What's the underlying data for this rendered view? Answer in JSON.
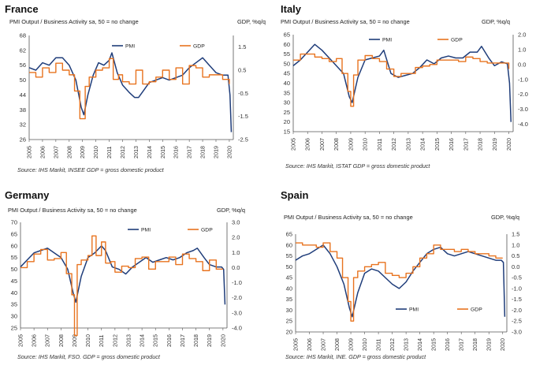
{
  "colors": {
    "pmi": "#1f3d7a",
    "gdp": "#e8731f",
    "axis": "#555555",
    "grid": "#e0e0e0"
  },
  "chart_data": [
    {
      "type": "line",
      "country": "France",
      "subtitle": "PMI Output  / Business Activity sa, 50 = no change",
      "right_axis_label": "GDP, %q/q",
      "source": "Source: IHS Markit, INSEE GDP = gross domestic product",
      "legend": [
        "PMI",
        "GDP"
      ],
      "legend_placement": "top",
      "left_ticks": [
        "68",
        "62",
        "56",
        "50",
        "44",
        "38",
        "32",
        "26"
      ],
      "ylim_left": [
        26,
        68
      ],
      "right_ticks": [
        "1.5",
        "0.5",
        "-0.5",
        "-1.5",
        "-2.5"
      ],
      "ylim_right": [
        -2.5,
        2.0
      ],
      "x_ticks": [
        "2005",
        "2006",
        "2007",
        "2008",
        "2009",
        "2010",
        "2011",
        "2012",
        "2013",
        "2014",
        "2015",
        "2016",
        "2017",
        "2018",
        "2019",
        "2020"
      ],
      "series": [
        {
          "name": "PMI",
          "axis": "left",
          "x": [
            2005.0,
            2005.5,
            2006.0,
            2006.5,
            2007.0,
            2007.5,
            2008.0,
            2008.5,
            2008.9,
            2009.1,
            2009.4,
            2009.8,
            2010.2,
            2010.6,
            2011.0,
            2011.2,
            2011.6,
            2012.0,
            2012.5,
            2012.9,
            2013.2,
            2013.6,
            2014.0,
            2014.5,
            2015.0,
            2015.5,
            2016.0,
            2016.5,
            2017.0,
            2017.5,
            2018.0,
            2018.5,
            2019.0,
            2019.5,
            2019.9,
            2020.05,
            2020.15
          ],
          "values": [
            55,
            54,
            57,
            56,
            59,
            59,
            56,
            50,
            39,
            36,
            44,
            52,
            57,
            56,
            58,
            61,
            53,
            48,
            45,
            43,
            43,
            46,
            49,
            50,
            51,
            50,
            51,
            52,
            55,
            57,
            59,
            56,
            53,
            52,
            52,
            44,
            29
          ]
        },
        {
          "name": "GDP",
          "axis": "right",
          "x": [
            2005.0,
            2005.5,
            2006.0,
            2006.5,
            2007.0,
            2007.5,
            2008.0,
            2008.4,
            2008.8,
            2009.0,
            2009.2,
            2009.5,
            2010.0,
            2010.5,
            2011.0,
            2011.3,
            2011.7,
            2012.0,
            2012.5,
            2013.0,
            2013.5,
            2014.0,
            2014.5,
            2015.0,
            2015.5,
            2016.0,
            2016.5,
            2017.0,
            2017.5,
            2018.0,
            2018.5,
            2019.0,
            2019.5,
            2020.0
          ],
          "values": [
            0.4,
            0.2,
            0.6,
            0.4,
            0.8,
            0.5,
            0.3,
            -0.4,
            -1.6,
            -1.6,
            -0.2,
            0.2,
            0.5,
            0.6,
            1.0,
            0.1,
            0.3,
            0.0,
            -0.1,
            0.5,
            -0.1,
            0.0,
            0.2,
            0.5,
            0.1,
            0.6,
            -0.1,
            0.7,
            0.6,
            0.2,
            0.3,
            0.3,
            0.1,
            -0.1
          ]
        }
      ]
    },
    {
      "type": "line",
      "country": "Italy",
      "subtitle": "PMI Output  / Business Activity sa, 50 = no change",
      "right_axis_label": "GDP, %q/q",
      "source": "Source: IHS Markit, ISTAT GDP = gross domestic product",
      "legend": [
        "PMI",
        "GDP"
      ],
      "legend_placement": "top",
      "left_ticks": [
        "65",
        "60",
        "55",
        "50",
        "45",
        "40",
        "35",
        "30",
        "25",
        "20",
        "15"
      ],
      "ylim_left": [
        15,
        65
      ],
      "right_ticks": [
        "2.0",
        "1.0",
        "0.0",
        "-1.0",
        "-2.0",
        "-3.0",
        "-4.0"
      ],
      "ylim_right": [
        -4.5,
        2.0
      ],
      "x_ticks": [
        "2005",
        "2006",
        "2007",
        "2008",
        "2009",
        "2010",
        "2011",
        "2012",
        "2013",
        "2014",
        "2015",
        "2016",
        "2017",
        "2018",
        "2019",
        "2020"
      ],
      "series": [
        {
          "name": "PMI",
          "axis": "left",
          "x": [
            2005.0,
            2005.5,
            2006.0,
            2006.5,
            2007.0,
            2007.5,
            2008.0,
            2008.5,
            2008.9,
            2009.1,
            2009.5,
            2010.0,
            2010.5,
            2011.0,
            2011.3,
            2011.8,
            2012.3,
            2012.8,
            2013.3,
            2013.8,
            2014.3,
            2014.8,
            2015.3,
            2015.8,
            2016.3,
            2016.8,
            2017.3,
            2017.8,
            2018.1,
            2018.6,
            2019.0,
            2019.5,
            2019.9,
            2020.05,
            2020.15
          ],
          "values": [
            49,
            52,
            56,
            60,
            57,
            53,
            49,
            45,
            33,
            30,
            43,
            52,
            53,
            54,
            57,
            45,
            43,
            44,
            45,
            48,
            52,
            50,
            53,
            54,
            53,
            53,
            56,
            56,
            59,
            53,
            49,
            51,
            50,
            40,
            20
          ]
        },
        {
          "name": "GDP",
          "axis": "right",
          "x": [
            2005.0,
            2005.5,
            2006.0,
            2006.5,
            2007.0,
            2007.5,
            2008.0,
            2008.4,
            2008.8,
            2009.0,
            2009.2,
            2009.5,
            2010.0,
            2010.5,
            2011.0,
            2011.5,
            2012.0,
            2012.5,
            2013.0,
            2013.5,
            2014.0,
            2014.5,
            2015.0,
            2015.5,
            2016.0,
            2016.5,
            2017.0,
            2017.5,
            2018.0,
            2018.5,
            2019.0,
            2019.5,
            2020.0
          ],
          "values": [
            0.3,
            0.7,
            0.7,
            0.5,
            0.4,
            0.2,
            0.4,
            -0.6,
            -1.8,
            -2.8,
            -0.7,
            0.3,
            0.6,
            0.4,
            0.2,
            -0.3,
            -0.8,
            -0.6,
            -0.6,
            -0.2,
            -0.1,
            0.0,
            0.3,
            0.3,
            0.3,
            0.2,
            0.5,
            0.4,
            0.2,
            0.1,
            0.1,
            0.1,
            -0.3
          ]
        }
      ]
    },
    {
      "type": "line",
      "country": "Germany",
      "subtitle": "PMI Output  / Business Activity sa, 50 = no change",
      "right_axis_label": "GDP, %q/q",
      "source": "Source: IHS Markit, FSO. GDP = gross domestic product",
      "legend": [
        "PMI",
        "GDP"
      ],
      "legend_placement": "top",
      "left_ticks": [
        "70",
        "65",
        "60",
        "55",
        "50",
        "45",
        "40",
        "35",
        "30",
        "25"
      ],
      "ylim_left": [
        25,
        70
      ],
      "right_ticks": [
        "3.0",
        "2.0",
        "1.0",
        "0.0",
        "-1.0",
        "-2.0",
        "-3.0",
        "-4.0"
      ],
      "ylim_right": [
        -4.0,
        3.0
      ],
      "x_ticks": [
        "2005",
        "2006",
        "2007",
        "2008",
        "2009",
        "2010",
        "2011",
        "2012",
        "2013",
        "2014",
        "2015",
        "2016",
        "2017",
        "2018",
        "2019",
        "2020"
      ],
      "series": [
        {
          "name": "PMI",
          "axis": "left",
          "x": [
            2005.0,
            2005.5,
            2006.0,
            2006.5,
            2007.0,
            2007.5,
            2008.0,
            2008.5,
            2008.9,
            2009.1,
            2009.5,
            2010.0,
            2010.5,
            2011.0,
            2011.3,
            2011.8,
            2012.3,
            2012.8,
            2013.3,
            2013.8,
            2014.3,
            2014.8,
            2015.3,
            2015.8,
            2016.3,
            2016.8,
            2017.3,
            2017.8,
            2018.1,
            2018.6,
            2019.0,
            2019.5,
            2019.9,
            2020.05,
            2020.15
          ],
          "values": [
            51,
            54,
            57,
            58,
            59,
            57,
            55,
            50,
            40,
            36,
            47,
            55,
            57,
            60,
            58,
            51,
            50,
            48,
            51,
            53,
            55,
            53,
            54,
            55,
            54,
            55,
            57,
            58,
            59,
            55,
            52,
            51,
            51,
            50,
            35
          ]
        },
        {
          "name": "GDP",
          "axis": "right",
          "x": [
            2005.0,
            2005.5,
            2006.0,
            2006.5,
            2007.0,
            2007.5,
            2008.0,
            2008.4,
            2008.8,
            2009.0,
            2009.2,
            2009.5,
            2010.0,
            2010.3,
            2010.6,
            2011.0,
            2011.3,
            2011.7,
            2012.0,
            2012.5,
            2013.0,
            2013.5,
            2014.0,
            2014.5,
            2015.0,
            2015.5,
            2016.0,
            2016.5,
            2017.0,
            2017.5,
            2018.0,
            2018.5,
            2019.0,
            2019.5,
            2020.0
          ],
          "values": [
            0.0,
            0.4,
            0.9,
            1.2,
            0.5,
            0.6,
            1.0,
            -0.4,
            -1.8,
            -4.5,
            0.2,
            0.5,
            0.8,
            2.1,
            0.8,
            1.7,
            0.3,
            0.4,
            -0.3,
            0.1,
            0.0,
            0.6,
            0.7,
            -0.1,
            0.4,
            0.4,
            0.7,
            0.2,
            0.9,
            0.6,
            0.4,
            -0.2,
            0.5,
            -0.1,
            -0.1
          ]
        }
      ]
    },
    {
      "type": "line",
      "country": "Spain",
      "subtitle": "PMI Output  / Business Activity sa, 50 = no change",
      "right_axis_label": "GDP, %q/q",
      "source": "Source: IHS Markit, INE. GDP = gross domestic product",
      "legend": [
        "PMI",
        "GDP"
      ],
      "legend_placement": "bottom",
      "left_ticks": [
        "65",
        "60",
        "55",
        "50",
        "45",
        "40",
        "35",
        "30",
        "25",
        "20"
      ],
      "ylim_left": [
        20,
        65
      ],
      "right_ticks": [
        "1.5",
        "1.0",
        "0.5",
        "0.0",
        "-0.5",
        "-1.0",
        "-1.5",
        "-2.0",
        "-2.5",
        "-3.0"
      ],
      "ylim_right": [
        -3.0,
        1.5
      ],
      "x_ticks": [
        "2005",
        "2006",
        "2007",
        "2008",
        "2009",
        "2010",
        "2011",
        "2012",
        "2013",
        "2014",
        "2015",
        "2016",
        "2017",
        "2018",
        "2019",
        "2020"
      ],
      "series": [
        {
          "name": "PMI",
          "axis": "left",
          "x": [
            2005.0,
            2005.5,
            2006.0,
            2006.5,
            2007.0,
            2007.5,
            2008.0,
            2008.5,
            2008.9,
            2009.1,
            2009.5,
            2010.0,
            2010.5,
            2011.0,
            2011.5,
            2012.0,
            2012.5,
            2013.0,
            2013.5,
            2014.0,
            2014.5,
            2015.0,
            2015.5,
            2016.0,
            2016.5,
            2017.0,
            2017.5,
            2018.0,
            2018.5,
            2019.0,
            2019.5,
            2019.9,
            2020.05,
            2020.15
          ],
          "values": [
            53,
            55,
            56,
            58,
            60,
            56,
            50,
            42,
            31,
            27,
            38,
            47,
            49,
            48,
            45,
            42,
            40,
            43,
            48,
            52,
            56,
            58,
            59,
            56,
            55,
            56,
            57,
            56,
            55,
            54,
            53,
            53,
            52,
            27
          ]
        },
        {
          "name": "GDP",
          "axis": "right",
          "x": [
            2005.0,
            2005.5,
            2006.0,
            2006.5,
            2007.0,
            2007.5,
            2008.0,
            2008.4,
            2008.8,
            2009.0,
            2009.2,
            2009.5,
            2010.0,
            2010.5,
            2011.0,
            2011.5,
            2012.0,
            2012.5,
            2013.0,
            2013.5,
            2014.0,
            2014.5,
            2015.0,
            2015.5,
            2016.0,
            2016.5,
            2017.0,
            2017.5,
            2018.0,
            2018.5,
            2019.0,
            2019.5,
            2020.0
          ],
          "values": [
            1.1,
            1.0,
            1.0,
            0.9,
            1.1,
            0.7,
            0.4,
            -0.5,
            -1.6,
            -2.5,
            -0.5,
            -0.2,
            0.0,
            0.1,
            0.2,
            -0.3,
            -0.4,
            -0.5,
            -0.3,
            0.0,
            0.4,
            0.6,
            1.0,
            0.8,
            0.8,
            0.7,
            0.8,
            0.7,
            0.6,
            0.6,
            0.5,
            0.4,
            0.4
          ]
        }
      ]
    }
  ]
}
